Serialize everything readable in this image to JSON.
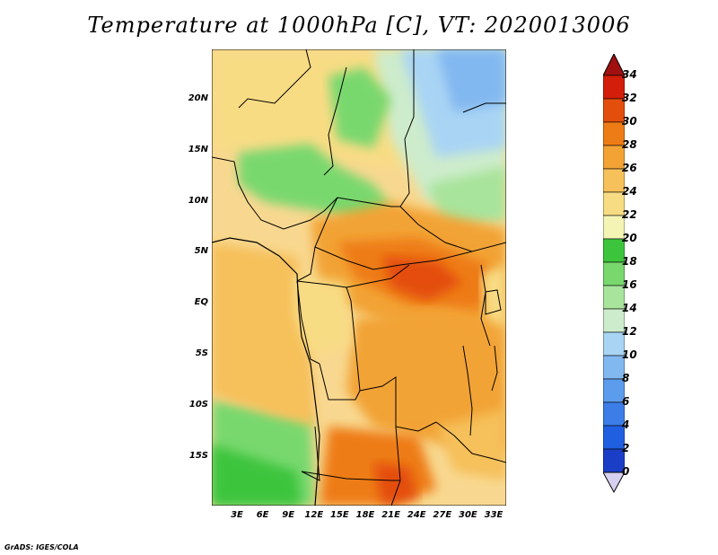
{
  "title": "Temperature at 1000hPa [C], VT: 2020013006",
  "credit": "GrADS: IGES/COLA",
  "map": {
    "lat_ticks": [
      "20N",
      "15N",
      "10N",
      "5N",
      "EQ",
      "5S",
      "10S",
      "15S"
    ],
    "lon_ticks": [
      "3E",
      "6E",
      "9E",
      "12E",
      "15E",
      "18E",
      "21E",
      "24E",
      "27E",
      "30E",
      "33E"
    ]
  },
  "colorbar": {
    "levels": [
      "0",
      "2",
      "4",
      "6",
      "8",
      "10",
      "12",
      "14",
      "16",
      "18",
      "20",
      "22",
      "24",
      "26",
      "28",
      "30",
      "32",
      "34"
    ],
    "colors": [
      "#1a0a78",
      "#1b3ec6",
      "#2060e0",
      "#3c7de8",
      "#5c9cec",
      "#82b8f0",
      "#a9d4f4",
      "#cdeccc",
      "#a8e49c",
      "#78d86e",
      "#3cc43c",
      "#f4f4b4",
      "#f8dc84",
      "#f6c05a",
      "#f2a334",
      "#ee7c16",
      "#e44e0c",
      "#d21e0a",
      "#a01010"
    ]
  }
}
